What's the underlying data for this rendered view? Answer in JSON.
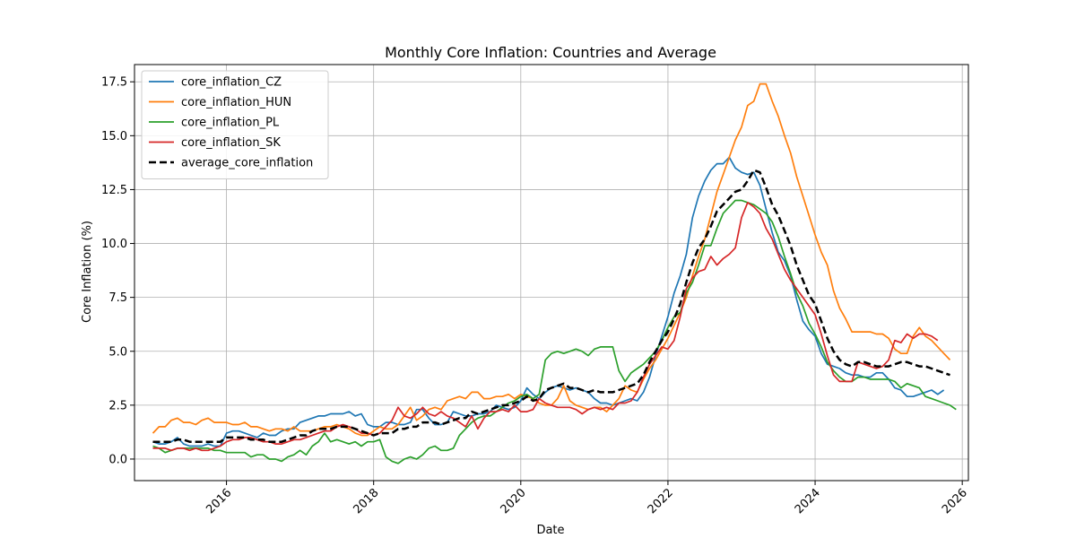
{
  "chart_data": {
    "type": "line",
    "title": "Monthly Core Inflation: Countries and Average",
    "xlabel": "Date",
    "ylabel": "Core Inflation (%)",
    "x_range": [
      "2014-10",
      "2026-02"
    ],
    "ylim": [
      -1.0,
      18.3
    ],
    "x_ticks": [
      "2016",
      "2018",
      "2020",
      "2022",
      "2024",
      "2026"
    ],
    "y_ticks": [
      "0.0",
      "2.5",
      "5.0",
      "7.5",
      "10.0",
      "12.5",
      "15.0",
      "17.5"
    ],
    "grid": true,
    "legend_position": "top-left",
    "start": "2015-01",
    "step": "monthly",
    "series": [
      {
        "name": "core_inflation_CZ",
        "color": "#1f77b4",
        "values": [
          0.8,
          0.7,
          0.7,
          0.8,
          1.0,
          0.7,
          0.6,
          0.6,
          0.6,
          0.7,
          0.6,
          0.6,
          1.2,
          1.3,
          1.3,
          1.2,
          1.1,
          1.0,
          1.2,
          1.1,
          1.1,
          1.3,
          1.4,
          1.4,
          1.7,
          1.8,
          1.9,
          2.0,
          2.0,
          2.1,
          2.1,
          2.1,
          2.2,
          2.0,
          2.1,
          1.6,
          1.5,
          1.5,
          1.7,
          1.7,
          1.6,
          1.6,
          1.7,
          2.3,
          2.3,
          1.9,
          1.6,
          1.6,
          1.7,
          2.2,
          2.1,
          2.0,
          2.0,
          2.1,
          2.1,
          2.2,
          2.5,
          2.4,
          2.3,
          2.4,
          2.7,
          3.3,
          3.0,
          2.8,
          3.1,
          3.3,
          3.4,
          3.3,
          3.2,
          3.3,
          3.2,
          3.1,
          2.8,
          2.6,
          2.6,
          2.5,
          2.6,
          2.7,
          2.8,
          2.7,
          3.1,
          3.8,
          4.8,
          5.7,
          6.6,
          7.7,
          8.5,
          9.5,
          11.2,
          12.2,
          12.9,
          13.4,
          13.7,
          13.7,
          14.0,
          13.5,
          13.3,
          13.2,
          13.3,
          12.7,
          11.6,
          10.5,
          9.6,
          9.2,
          8.5,
          7.4,
          6.4,
          6.0,
          5.7,
          4.9,
          4.4,
          4.3,
          4.2,
          4.0,
          3.9,
          3.9,
          3.8,
          3.8,
          4.0,
          4.0,
          3.7,
          3.3,
          3.2,
          2.9,
          2.9,
          3.0,
          3.1,
          3.2,
          3.0,
          3.2
        ]
      },
      {
        "name": "core_inflation_HUN",
        "color": "#ff7f0e",
        "values": [
          1.2,
          1.5,
          1.5,
          1.8,
          1.9,
          1.7,
          1.7,
          1.6,
          1.8,
          1.9,
          1.7,
          1.7,
          1.7,
          1.6,
          1.6,
          1.7,
          1.5,
          1.5,
          1.4,
          1.3,
          1.4,
          1.4,
          1.3,
          1.5,
          1.3,
          1.3,
          1.3,
          1.4,
          1.5,
          1.5,
          1.6,
          1.5,
          1.4,
          1.2,
          1.1,
          1.1,
          1.3,
          1.5,
          1.4,
          1.4,
          1.6,
          2.0,
          2.4,
          1.8,
          2.0,
          2.3,
          2.4,
          2.3,
          2.7,
          2.8,
          2.9,
          2.8,
          3.1,
          3.1,
          2.8,
          2.8,
          2.9,
          2.9,
          3.0,
          2.8,
          3.0,
          2.9,
          2.8,
          2.6,
          2.5,
          2.5,
          2.8,
          3.4,
          2.7,
          2.5,
          2.4,
          2.3,
          2.4,
          2.4,
          2.2,
          2.5,
          2.8,
          3.4,
          3.2,
          3.1,
          3.7,
          4.2,
          4.6,
          5.1,
          5.6,
          6.2,
          6.8,
          7.5,
          8.5,
          9.4,
          10.2,
          11.3,
          12.4,
          13.2,
          14.0,
          14.8,
          15.4,
          16.4,
          16.6,
          17.4,
          17.4,
          16.6,
          15.9,
          15.0,
          14.2,
          13.1,
          12.2,
          11.3,
          10.4,
          9.6,
          9.0,
          7.8,
          7.0,
          6.5,
          5.9,
          5.9,
          5.9,
          5.9,
          5.8,
          5.8,
          5.6,
          5.1,
          4.9,
          4.9,
          5.7,
          6.1,
          5.7,
          5.5,
          5.2,
          4.9,
          4.6
        ]
      },
      {
        "name": "core_inflation_PL",
        "color": "#2ca02c",
        "values": [
          0.6,
          0.5,
          0.3,
          0.4,
          0.5,
          0.5,
          0.5,
          0.5,
          0.5,
          0.5,
          0.4,
          0.4,
          0.3,
          0.3,
          0.3,
          0.3,
          0.1,
          0.2,
          0.2,
          0.0,
          0.0,
          -0.1,
          0.1,
          0.2,
          0.4,
          0.2,
          0.6,
          0.8,
          1.2,
          0.8,
          0.9,
          0.8,
          0.7,
          0.8,
          0.6,
          0.8,
          0.8,
          0.9,
          0.1,
          -0.1,
          -0.2,
          0.0,
          0.1,
          0.0,
          0.2,
          0.5,
          0.6,
          0.4,
          0.4,
          0.5,
          1.1,
          1.4,
          1.7,
          1.9,
          2.0,
          2.0,
          2.2,
          2.4,
          2.6,
          2.7,
          2.9,
          3.0,
          2.8,
          3.0,
          4.6,
          4.9,
          5.0,
          4.9,
          5.0,
          5.1,
          5.0,
          4.8,
          5.1,
          5.2,
          5.2,
          5.2,
          4.1,
          3.6,
          4.0,
          4.2,
          4.4,
          4.7,
          5.0,
          5.5,
          6.1,
          6.6,
          6.8,
          7.7,
          8.2,
          9.0,
          9.9,
          9.9,
          10.7,
          11.4,
          11.7,
          12.0,
          12.0,
          11.9,
          11.8,
          11.6,
          11.4,
          11.0,
          10.3,
          9.4,
          8.6,
          7.7,
          7.1,
          6.3,
          5.8,
          5.2,
          4.5,
          4.1,
          3.8,
          3.6,
          3.6,
          3.8,
          3.8,
          3.7,
          3.7,
          3.7,
          3.7,
          3.6,
          3.3,
          3.5,
          3.4,
          3.3,
          2.9,
          2.8,
          2.7,
          2.6,
          2.5,
          2.3
        ]
      },
      {
        "name": "core_inflation_SK",
        "color": "#d62728",
        "values": [
          0.5,
          0.5,
          0.5,
          0.4,
          0.5,
          0.5,
          0.4,
          0.5,
          0.4,
          0.4,
          0.5,
          0.6,
          0.8,
          0.9,
          0.9,
          1.0,
          1.0,
          0.9,
          0.8,
          0.8,
          0.7,
          0.7,
          0.8,
          0.9,
          0.9,
          1.0,
          1.1,
          1.2,
          1.3,
          1.3,
          1.5,
          1.6,
          1.5,
          1.4,
          1.2,
          1.2,
          1.1,
          1.2,
          1.5,
          1.8,
          2.4,
          2.0,
          1.9,
          2.1,
          2.4,
          2.1,
          2.0,
          2.2,
          2.0,
          1.9,
          1.7,
          1.5,
          2.0,
          1.4,
          1.9,
          2.2,
          2.2,
          2.3,
          2.2,
          2.5,
          2.2,
          2.2,
          2.3,
          2.8,
          2.6,
          2.5,
          2.4,
          2.4,
          2.4,
          2.3,
          2.1,
          2.3,
          2.4,
          2.3,
          2.4,
          2.3,
          2.6,
          2.6,
          2.7,
          3.1,
          3.8,
          4.4,
          4.8,
          5.2,
          5.1,
          5.5,
          6.6,
          7.9,
          8.4,
          8.7,
          8.8,
          9.4,
          9.0,
          9.3,
          9.5,
          9.8,
          11.2,
          11.9,
          11.7,
          11.4,
          10.7,
          10.2,
          9.5,
          8.8,
          8.3,
          7.9,
          7.5,
          7.1,
          6.7,
          5.8,
          4.8,
          3.9,
          3.6,
          3.6,
          3.6,
          4.5,
          4.4,
          4.3,
          4.2,
          4.3,
          4.6,
          5.5,
          5.4,
          5.8,
          5.6,
          5.8,
          5.8,
          5.7,
          5.5
        ]
      },
      {
        "name": "average_core_inflation",
        "color": "#000000",
        "dashed": true,
        "values": [
          0.8,
          0.8,
          0.8,
          0.8,
          0.9,
          0.9,
          0.8,
          0.8,
          0.8,
          0.8,
          0.8,
          0.8,
          1.0,
          1.0,
          1.0,
          1.0,
          0.9,
          0.9,
          0.9,
          0.8,
          0.8,
          0.8,
          0.9,
          1.0,
          1.1,
          1.1,
          1.3,
          1.4,
          1.4,
          1.4,
          1.5,
          1.5,
          1.5,
          1.4,
          1.3,
          1.2,
          1.1,
          1.2,
          1.2,
          1.2,
          1.4,
          1.4,
          1.5,
          1.5,
          1.7,
          1.7,
          1.7,
          1.6,
          1.7,
          1.8,
          1.9,
          1.9,
          2.2,
          2.1,
          2.2,
          2.3,
          2.4,
          2.5,
          2.5,
          2.6,
          2.7,
          2.9,
          2.7,
          2.8,
          3.2,
          3.3,
          3.4,
          3.5,
          3.3,
          3.3,
          3.2,
          3.1,
          3.2,
          3.1,
          3.1,
          3.1,
          3.2,
          3.3,
          3.4,
          3.5,
          3.9,
          4.5,
          5.0,
          5.5,
          5.9,
          6.5,
          7.2,
          8.2,
          9.1,
          9.8,
          10.2,
          10.8,
          11.5,
          11.8,
          12.1,
          12.4,
          12.5,
          12.9,
          13.4,
          13.3,
          12.6,
          11.8,
          11.3,
          10.6,
          9.9,
          9.0,
          8.3,
          7.6,
          7.2,
          6.4,
          5.6,
          5.0,
          4.6,
          4.4,
          4.3,
          4.5,
          4.5,
          4.4,
          4.3,
          4.3,
          4.3,
          4.4,
          4.5,
          4.5,
          4.4,
          4.3,
          4.3,
          4.2,
          4.1,
          4.0,
          3.9
        ]
      }
    ]
  }
}
